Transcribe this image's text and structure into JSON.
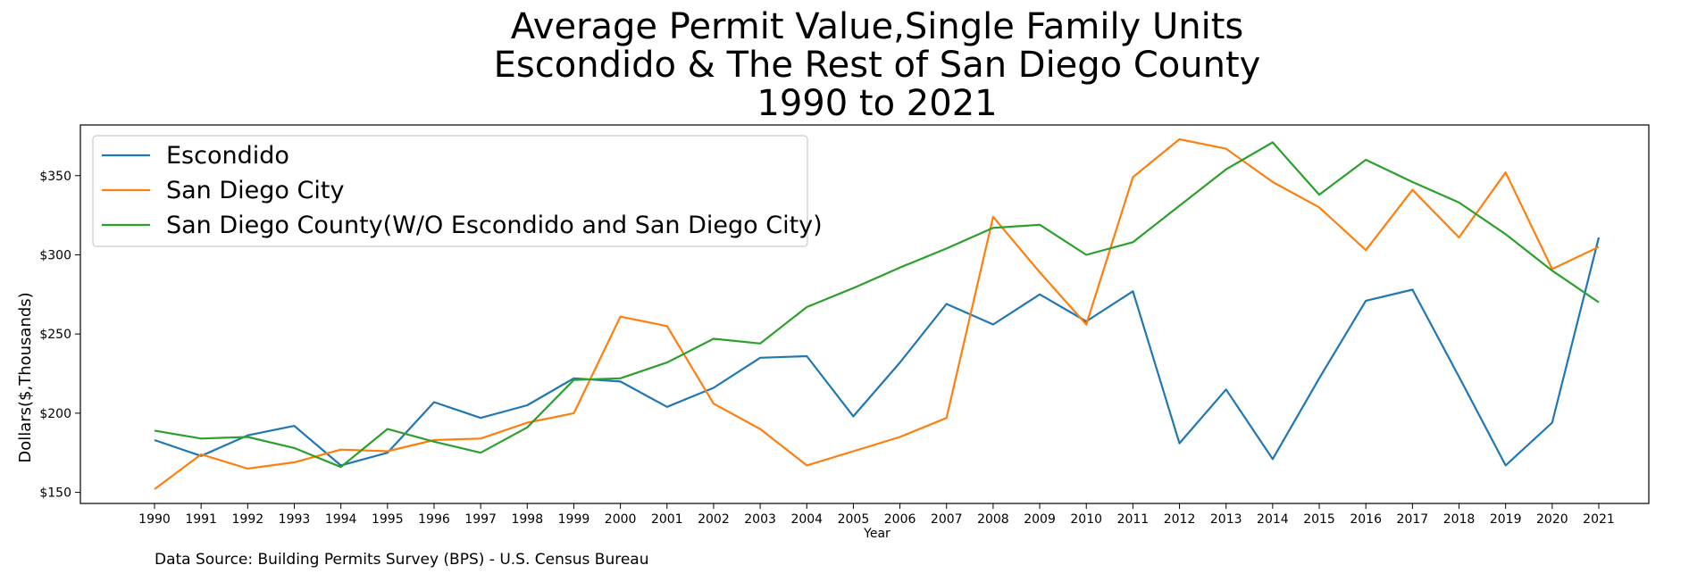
{
  "chart_data": {
    "type": "line",
    "title": [
      "Average Permit Value,Single Family Units",
      "Escondido & The Rest of San Diego County",
      "1990 to 2021"
    ],
    "xlabel": "Year",
    "ylabel": "Dollars($,Thousands)",
    "ylim": [
      143,
      382
    ],
    "yticks": [
      150,
      200,
      250,
      300,
      350
    ],
    "ytick_labels": [
      "$150",
      "$200",
      "$250",
      "$300",
      "$350"
    ],
    "x": [
      "1990",
      "1991",
      "1992",
      "1993",
      "1994",
      "1995",
      "1996",
      "1997",
      "1998",
      "1999",
      "2000",
      "2001",
      "2002",
      "2003",
      "2004",
      "2005",
      "2006",
      "2007",
      "2008",
      "2009",
      "2010",
      "2011",
      "2012",
      "2013",
      "2014",
      "2015",
      "2016",
      "2017",
      "2018",
      "2019",
      "2020",
      "2021"
    ],
    "legend_position": "top-left",
    "grid": false,
    "series": [
      {
        "name": "Escondido",
        "color": "#1f77b4",
        "values": [
          183,
          173,
          186,
          192,
          167,
          175,
          207,
          197,
          205,
          222,
          220,
          204,
          216,
          235,
          236,
          198,
          232,
          269,
          256,
          275,
          258,
          277,
          181,
          215,
          171,
          222,
          271,
          278,
          223,
          167,
          194,
          311
        ]
      },
      {
        "name": "San Diego City",
        "color": "#ff7f0e",
        "values": [
          152,
          174,
          165,
          169,
          177,
          176,
          183,
          184,
          194,
          200,
          261,
          255,
          206,
          190,
          167,
          176,
          185,
          197,
          324,
          289,
          256,
          349,
          373,
          367,
          346,
          330,
          303,
          341,
          311,
          352,
          291,
          305
        ]
      },
      {
        "name": "San Diego County(W/O Escondido and San Diego City)",
        "color": "#2ca02c",
        "values": [
          189,
          184,
          185,
          178,
          166,
          190,
          182,
          175,
          191,
          221,
          222,
          232,
          247,
          244,
          267,
          279,
          292,
          304,
          317,
          319,
          300,
          308,
          331,
          354,
          371,
          338,
          360,
          346,
          333,
          313,
          290,
          270
        ]
      }
    ]
  },
  "footer": {
    "source": "Data Source: Building Permits Survey (BPS) - U.S. Census Bureau"
  }
}
